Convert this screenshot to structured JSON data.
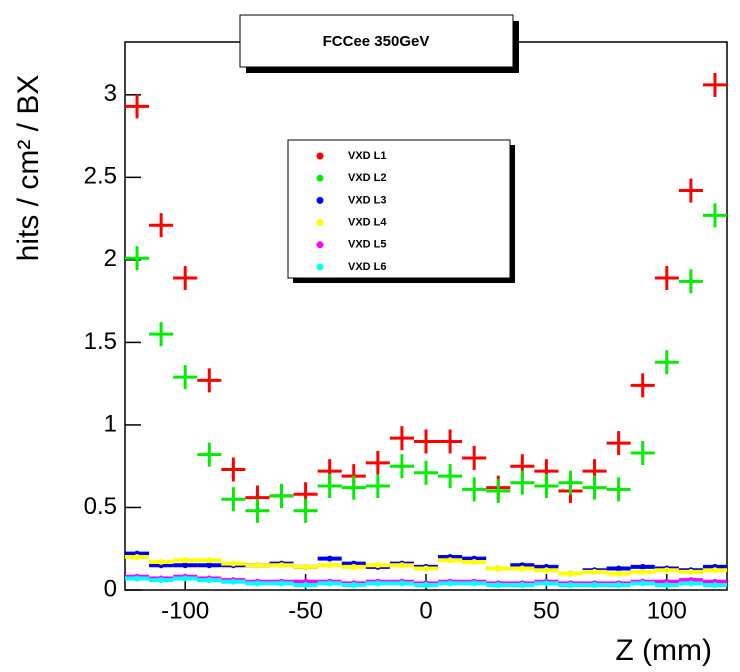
{
  "chart_data": {
    "type": "scatter",
    "title": "FCCee 350GeV",
    "x_label": "Z (mm)",
    "y_label": "hits / cm² / BX",
    "xlim": [
      -125,
      125
    ],
    "ylim": [
      0,
      3.32
    ],
    "xticks": [
      -100,
      -50,
      0,
      50,
      100
    ],
    "yticks": [
      0,
      0.5,
      1,
      1.5,
      2,
      2.5,
      3
    ],
    "x": [
      -120,
      -110,
      -100,
      -90,
      -80,
      -70,
      -60,
      -50,
      -40,
      -30,
      -20,
      -10,
      0,
      10,
      20,
      30,
      40,
      50,
      60,
      70,
      80,
      90,
      100,
      110,
      120
    ],
    "series": [
      {
        "name": "VXD L1",
        "color": "#ff0000",
        "values": [
          2.93,
          2.21,
          1.89,
          1.27,
          0.73,
          0.56,
          0.57,
          0.58,
          0.72,
          0.69,
          0.77,
          0.92,
          0.9,
          0.9,
          0.8,
          0.62,
          0.75,
          0.72,
          0.6,
          0.72,
          0.89,
          1.24,
          1.89,
          2.42,
          3.06
        ]
      },
      {
        "name": "VXD L2",
        "color": "#00ee00",
        "values": [
          2.01,
          1.55,
          1.29,
          0.82,
          0.55,
          0.48,
          0.57,
          0.48,
          0.63,
          0.62,
          0.63,
          0.75,
          0.71,
          0.69,
          0.61,
          0.6,
          0.65,
          0.63,
          0.65,
          0.62,
          0.61,
          0.83,
          1.38,
          1.87,
          2.27
        ]
      },
      {
        "name": "VXD L3",
        "color": "#0000ee",
        "values": [
          0.22,
          0.15,
          0.15,
          0.15,
          0.15,
          0.15,
          0.16,
          0.14,
          0.19,
          0.16,
          0.14,
          0.16,
          0.14,
          0.2,
          0.19,
          0.13,
          0.15,
          0.14,
          0.1,
          0.12,
          0.13,
          0.14,
          0.13,
          0.12,
          0.14
        ]
      },
      {
        "name": "VXD L4",
        "color": "#ffff00",
        "values": [
          0.2,
          0.17,
          0.18,
          0.18,
          0.16,
          0.15,
          0.15,
          0.14,
          0.15,
          0.14,
          0.15,
          0.15,
          0.13,
          0.18,
          0.17,
          0.13,
          0.13,
          0.12,
          0.1,
          0.11,
          0.1,
          0.11,
          0.12,
          0.11,
          0.12
        ]
      },
      {
        "name": "VXD L5",
        "color": "#ff00ff",
        "values": [
          0.08,
          0.07,
          0.08,
          0.07,
          0.06,
          0.05,
          0.05,
          0.05,
          0.05,
          0.04,
          0.05,
          0.05,
          0.04,
          0.05,
          0.05,
          0.04,
          0.04,
          0.05,
          0.04,
          0.04,
          0.04,
          0.05,
          0.05,
          0.06,
          0.05
        ]
      },
      {
        "name": "VXD L6",
        "color": "#00ffff",
        "values": [
          0.07,
          0.06,
          0.07,
          0.06,
          0.05,
          0.04,
          0.04,
          0.03,
          0.04,
          0.03,
          0.04,
          0.04,
          0.03,
          0.04,
          0.04,
          0.03,
          0.03,
          0.04,
          0.03,
          0.03,
          0.03,
          0.04,
          0.03,
          0.04,
          0.03
        ]
      }
    ]
  }
}
